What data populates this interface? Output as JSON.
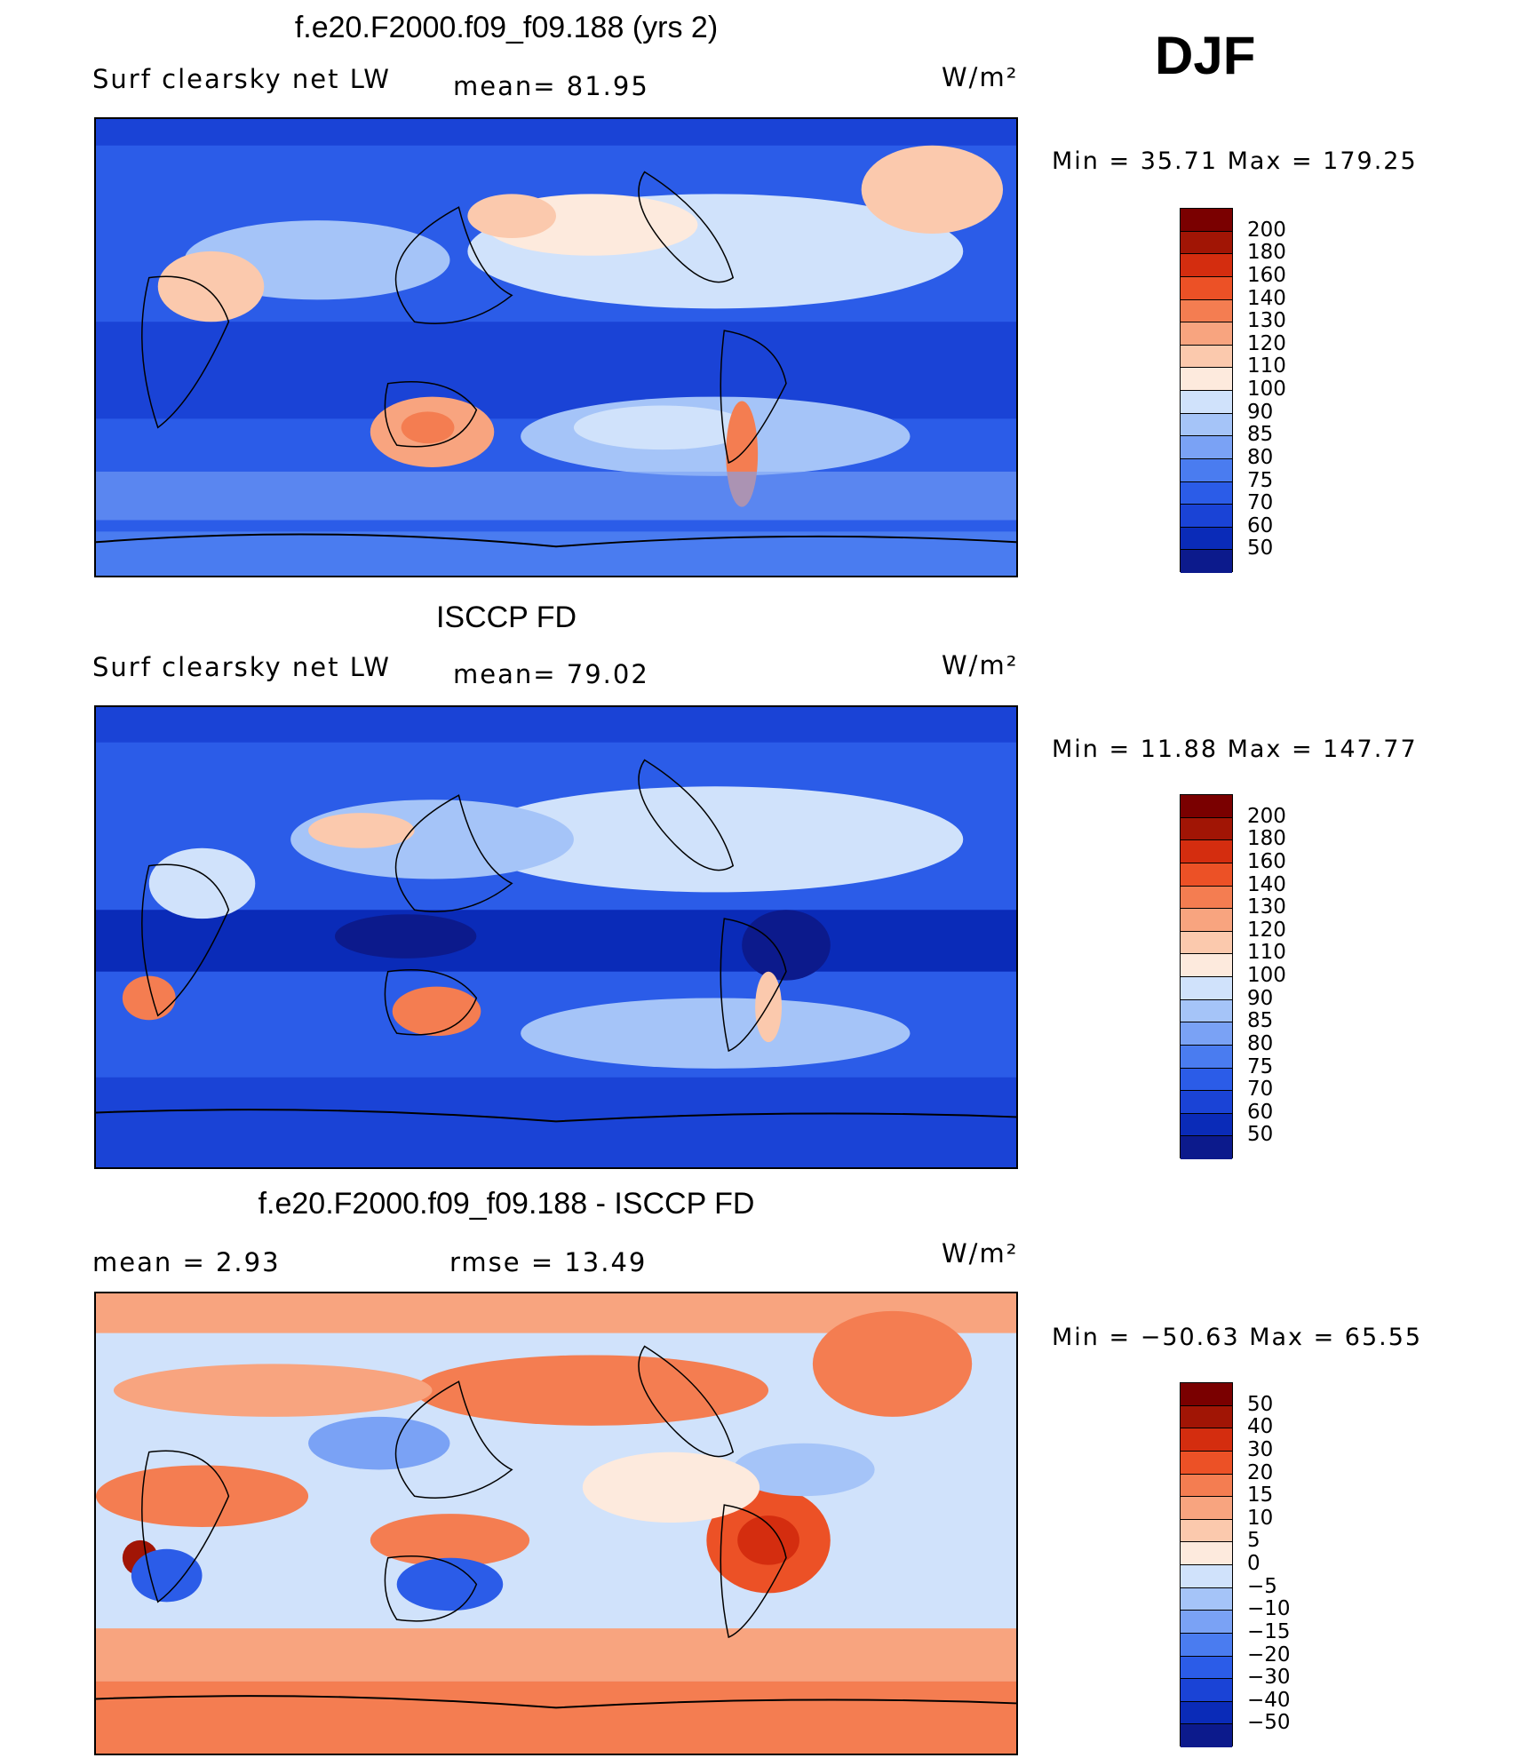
{
  "season": "DJF",
  "colors": {
    "abs_scale": [
      "#0c1a8c",
      "#0a2bb8",
      "#1a43d6",
      "#2b5ce8",
      "#4a7cf0",
      "#7aa2f5",
      "#a5c4f8",
      "#d0e2fb",
      "#fdeadd",
      "#fbc9ad",
      "#f8a47f",
      "#f47d51",
      "#ec5126",
      "#d42d0f",
      "#a11505",
      "#7a0000"
    ],
    "diff_scale": [
      "#0c1a8c",
      "#0a2bb8",
      "#1a43d6",
      "#2b5ce8",
      "#4a7cf0",
      "#7aa2f5",
      "#a5c4f8",
      "#d0e2fb",
      "#fdeadd",
      "#fbc9ad",
      "#f8a47f",
      "#f47d51",
      "#ec5126",
      "#d42d0f",
      "#a11505",
      "#7a0000"
    ]
  },
  "panels": [
    {
      "title": "f.e20.F2000.f09_f09.188 (yrs 2)",
      "left_label": "Surf  clearsky  net  LW",
      "center_label": "mean=   81.95",
      "units": "W/m²",
      "minmax": "Min  =    35.71  Max  =  179.25",
      "colorbar_labels": [
        "200",
        "180",
        "160",
        "140",
        "130",
        "120",
        "110",
        "100",
        "90",
        "85",
        "80",
        "75",
        "70",
        "60",
        "50"
      ]
    },
    {
      "title": "ISCCP FD",
      "left_label": "Surf  clearsky  net  LW",
      "center_label": "mean=   79.02",
      "units": "W/m²",
      "minmax": "Min  =    11.88  Max  =  147.77",
      "colorbar_labels": [
        "200",
        "180",
        "160",
        "140",
        "130",
        "120",
        "110",
        "100",
        "90",
        "85",
        "80",
        "75",
        "70",
        "60",
        "50"
      ]
    },
    {
      "title": "f.e20.F2000.f09_f09.188 - ISCCP FD",
      "left_label": "mean  =     2.93",
      "center_label": "rmse  =    13.49",
      "units": "W/m²",
      "minmax": "Min  = −50.63  Max  =    65.55",
      "colorbar_labels": [
        "50",
        "40",
        "30",
        "20",
        "15",
        "10",
        "5",
        "0",
        "−5",
        "−10",
        "−15",
        "−20",
        "−30",
        "−40",
        "−50"
      ]
    }
  ],
  "chart_data": [
    {
      "type": "heatmap",
      "title": "f.e20.F2000.f09_f09.188 (yrs 2)",
      "variable": "Surf clearsky net LW",
      "units": "W/m2",
      "mean": 81.95,
      "min": 35.71,
      "max": 179.25,
      "contour_levels": [
        50,
        60,
        70,
        75,
        80,
        85,
        90,
        100,
        110,
        120,
        130,
        140,
        160,
        180,
        200
      ]
    },
    {
      "type": "heatmap",
      "title": "ISCCP FD",
      "variable": "Surf clearsky net LW",
      "units": "W/m2",
      "mean": 79.02,
      "min": 11.88,
      "max": 147.77,
      "contour_levels": [
        50,
        60,
        70,
        75,
        80,
        85,
        90,
        100,
        110,
        120,
        130,
        140,
        160,
        180,
        200
      ]
    },
    {
      "type": "heatmap",
      "title": "f.e20.F2000.f09_f09.188 - ISCCP FD",
      "units": "W/m2",
      "mean": 2.93,
      "rmse": 13.49,
      "min": -50.63,
      "max": 65.55,
      "contour_levels": [
        -50,
        -40,
        -30,
        -20,
        -15,
        -10,
        -5,
        0,
        5,
        10,
        15,
        20,
        30,
        40,
        50
      ]
    }
  ]
}
